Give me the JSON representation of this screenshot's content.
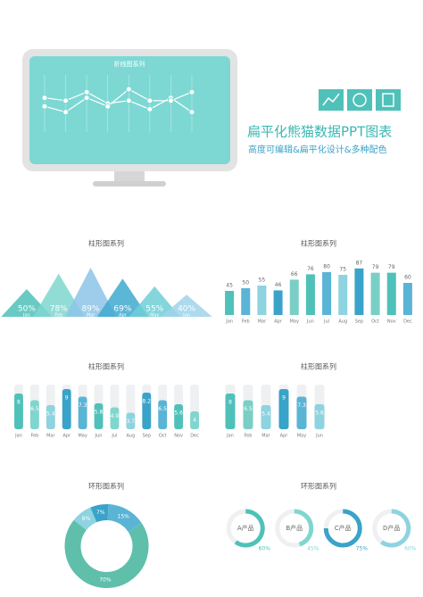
{
  "header": {
    "title": "扁平化熊猫数据PPT图表",
    "subtitle": "高度可编辑&扁平化设计&多种配色"
  },
  "chart_data": [
    {
      "type": "line",
      "title": "折线图系列",
      "x": [
        1,
        2,
        3,
        4,
        5,
        6,
        7,
        8
      ],
      "xlim": [
        1,
        8
      ],
      "ylim": [
        0,
        100
      ],
      "series": [
        {
          "color": "#ffffff",
          "values": [
            60,
            55,
            70,
            50,
            55,
            40,
            60,
            35
          ]
        },
        {
          "color": "#ffffff",
          "values": [
            45,
            35,
            60,
            45,
            75,
            55,
            55,
            70
          ]
        }
      ]
    },
    {
      "type": "triangle",
      "title": "柱形图系列",
      "categories": [
        "Jan",
        "Feb",
        "Mar",
        "Apr",
        "May",
        "Jun"
      ],
      "values": [
        50,
        78,
        89,
        69,
        55,
        40
      ],
      "value_labels": [
        "50%",
        "78%",
        "89%",
        "69%",
        "55%",
        "40%"
      ],
      "ylim": [
        0,
        100
      ],
      "colors": [
        "#4fc1b9",
        "#7fd6cf",
        "#8cc4e6",
        "#3fa9cf",
        "#6fcfd6",
        "#9fd4ea"
      ]
    },
    {
      "type": "bar",
      "title": "柱形图系列",
      "categories": [
        "Jan",
        "Feb",
        "Mar",
        "Apr",
        "May",
        "Jun",
        "Jul",
        "Aug",
        "Sep",
        "Oct",
        "Nov",
        "Dec"
      ],
      "values": [
        45,
        50,
        55,
        46,
        66,
        76,
        80,
        75,
        87,
        79,
        79,
        60
      ],
      "ylim": [
        0,
        100
      ],
      "colors": [
        "#4fc1b9",
        "#5ab4d6",
        "#8dd3e0",
        "#3aa3c9",
        "#79cfc5",
        "#4fc1b9",
        "#5ab4d6",
        "#8dd3e0",
        "#3aa3c9",
        "#79cfc5",
        "#4fc1b9",
        "#5ab4d6"
      ]
    },
    {
      "type": "bar",
      "title": "柱形图系列",
      "track": true,
      "categories": [
        "Jan",
        "Feb",
        "Mar",
        "Apr",
        "May",
        "Jun",
        "Jul",
        "Aug",
        "Sep",
        "Oct",
        "Nov",
        "Dec"
      ],
      "values": [
        8,
        6.5,
        5.4,
        9,
        7.3,
        5.8,
        4.9,
        3.7,
        8.2,
        6.5,
        5.6,
        4
      ],
      "ylim": [
        0,
        10
      ],
      "colors": [
        "#4fc1b9",
        "#7fd6cf",
        "#8dd3e0",
        "#3aa3c9",
        "#5ab4d6",
        "#4fc1b9",
        "#7fd6cf",
        "#8dd3e0",
        "#3aa3c9",
        "#5ab4d6",
        "#4fc1b9",
        "#7fd6cf"
      ]
    },
    {
      "type": "bar",
      "title": "柱形图系列",
      "track": true,
      "categories": [
        "Jan",
        "Feb",
        "Mar",
        "Apr",
        "May",
        "Jun"
      ],
      "values": [
        8,
        6.5,
        5.4,
        9,
        7.3,
        5.6
      ],
      "ylim": [
        0,
        10
      ],
      "colors": [
        "#4fc1b9",
        "#79cfc5",
        "#8dd3e0",
        "#3aa3c9",
        "#5ab4d6",
        "#8dd3e0"
      ]
    },
    {
      "type": "donut",
      "title": "环形图系列",
      "values": [
        8,
        7,
        15,
        70
      ],
      "value_labels": [
        "8%",
        "7%",
        "15%",
        "70%"
      ],
      "colors": [
        "#8dd3e0",
        "#3aa3c9",
        "#5ab4d6",
        "#5fbfab"
      ]
    },
    {
      "type": "ring",
      "title": "环形图系列",
      "categories": [
        "A产品",
        "B产品",
        "C产品",
        "D产品"
      ],
      "values": [
        60,
        45,
        75,
        60
      ],
      "value_labels": [
        "60%",
        "45%",
        "75%",
        "60%"
      ],
      "colors": [
        "#4fc1b9",
        "#7fd6cf",
        "#3aa3c9",
        "#8dd3e0"
      ]
    }
  ]
}
